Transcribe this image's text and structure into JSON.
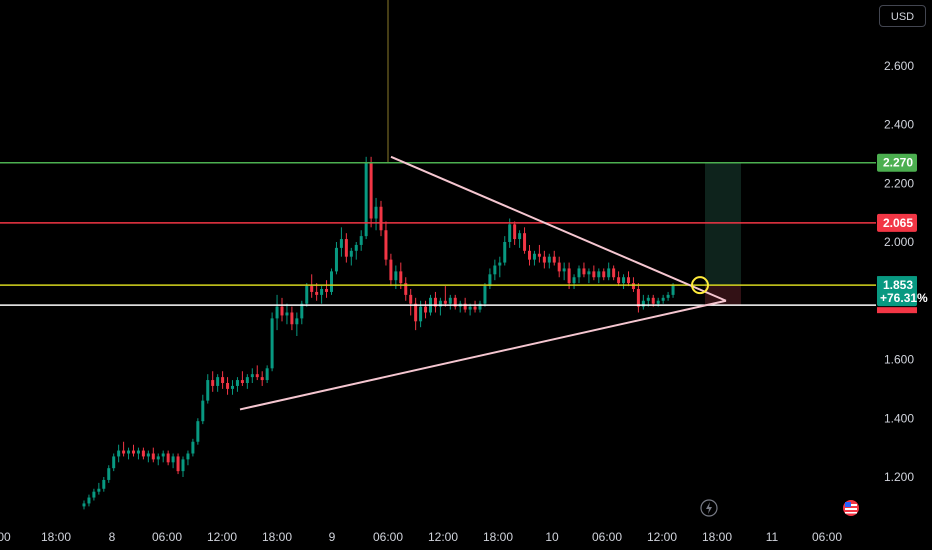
{
  "currency": "USD",
  "chart_data": {
    "type": "candlestick",
    "ylim": [
      1.075,
      2.75
    ],
    "y_ticks": [
      "2.600",
      "2.400",
      "2.200",
      "2.000",
      "1.600",
      "1.400",
      "1.200"
    ],
    "x_ticks": [
      "00",
      "18:00",
      "8",
      "06:00",
      "12:00",
      "18:00",
      "9",
      "06:00",
      "12:00",
      "18:00",
      "10",
      "06:00",
      "12:00",
      "18:00",
      "11",
      "06:00"
    ],
    "price_lines": [
      {
        "name": "target",
        "price": 2.27,
        "label": "2.270",
        "color": "#4caf50"
      },
      {
        "name": "resistance",
        "price": 2.065,
        "label": "2.065",
        "color": "#f23645"
      },
      {
        "name": "current",
        "price": 1.853,
        "label": "1.853",
        "sub": "+76.31%",
        "color": "#d6d61f"
      },
      {
        "name": "entry",
        "price": 1.785,
        "color": "#ffffff"
      }
    ],
    "triangle": {
      "apex_price": 1.8,
      "top_start_price": 2.29,
      "bottom_start_price": 1.43,
      "color": "#f5c6d0"
    },
    "candles": [
      [
        1.1,
        1.12,
        1.09,
        1.11
      ],
      [
        1.11,
        1.14,
        1.1,
        1.13
      ],
      [
        1.13,
        1.16,
        1.12,
        1.15
      ],
      [
        1.15,
        1.18,
        1.14,
        1.16
      ],
      [
        1.16,
        1.2,
        1.15,
        1.19
      ],
      [
        1.19,
        1.24,
        1.18,
        1.23
      ],
      [
        1.23,
        1.28,
        1.22,
        1.27
      ],
      [
        1.27,
        1.31,
        1.25,
        1.29
      ],
      [
        1.29,
        1.32,
        1.27,
        1.28
      ],
      [
        1.28,
        1.3,
        1.26,
        1.29
      ],
      [
        1.29,
        1.31,
        1.27,
        1.28
      ],
      [
        1.28,
        1.3,
        1.26,
        1.29
      ],
      [
        1.29,
        1.3,
        1.26,
        1.27
      ],
      [
        1.27,
        1.29,
        1.25,
        1.28
      ],
      [
        1.28,
        1.3,
        1.25,
        1.26
      ],
      [
        1.26,
        1.28,
        1.24,
        1.27
      ],
      [
        1.27,
        1.29,
        1.25,
        1.28
      ],
      [
        1.28,
        1.29,
        1.24,
        1.25
      ],
      [
        1.25,
        1.28,
        1.23,
        1.27
      ],
      [
        1.27,
        1.28,
        1.21,
        1.22
      ],
      [
        1.22,
        1.27,
        1.2,
        1.26
      ],
      [
        1.26,
        1.29,
        1.24,
        1.28
      ],
      [
        1.28,
        1.33,
        1.27,
        1.32
      ],
      [
        1.32,
        1.4,
        1.31,
        1.39
      ],
      [
        1.39,
        1.48,
        1.38,
        1.46
      ],
      [
        1.46,
        1.55,
        1.45,
        1.53
      ],
      [
        1.53,
        1.56,
        1.49,
        1.51
      ],
      [
        1.51,
        1.55,
        1.49,
        1.54
      ],
      [
        1.54,
        1.56,
        1.5,
        1.52
      ],
      [
        1.52,
        1.54,
        1.48,
        1.5
      ],
      [
        1.5,
        1.53,
        1.48,
        1.51
      ],
      [
        1.51,
        1.54,
        1.49,
        1.53
      ],
      [
        1.53,
        1.56,
        1.51,
        1.52
      ],
      [
        1.52,
        1.55,
        1.5,
        1.54
      ],
      [
        1.54,
        1.57,
        1.52,
        1.55
      ],
      [
        1.55,
        1.58,
        1.53,
        1.54
      ],
      [
        1.54,
        1.56,
        1.51,
        1.53
      ],
      [
        1.53,
        1.58,
        1.52,
        1.57
      ],
      [
        1.57,
        1.76,
        1.56,
        1.74
      ],
      [
        1.74,
        1.82,
        1.7,
        1.78
      ],
      [
        1.78,
        1.81,
        1.73,
        1.75
      ],
      [
        1.75,
        1.79,
        1.72,
        1.76
      ],
      [
        1.76,
        1.78,
        1.7,
        1.72
      ],
      [
        1.72,
        1.76,
        1.68,
        1.74
      ],
      [
        1.74,
        1.8,
        1.72,
        1.79
      ],
      [
        1.79,
        1.86,
        1.78,
        1.85
      ],
      [
        1.85,
        1.89,
        1.81,
        1.83
      ],
      [
        1.83,
        1.86,
        1.8,
        1.82
      ],
      [
        1.82,
        1.85,
        1.79,
        1.84
      ],
      [
        1.84,
        1.87,
        1.81,
        1.83
      ],
      [
        1.83,
        1.91,
        1.82,
        1.9
      ],
      [
        1.9,
        2.0,
        1.89,
        1.98
      ],
      [
        1.98,
        2.05,
        1.95,
        2.01
      ],
      [
        2.01,
        2.03,
        1.93,
        1.95
      ],
      [
        1.95,
        1.98,
        1.92,
        1.97
      ],
      [
        1.97,
        2.0,
        1.94,
        1.99
      ],
      [
        1.99,
        2.04,
        1.97,
        2.02
      ],
      [
        2.02,
        2.29,
        2.01,
        2.27
      ],
      [
        2.27,
        2.29,
        2.05,
        2.08
      ],
      [
        2.08,
        2.15,
        2.04,
        2.12
      ],
      [
        2.12,
        2.14,
        2.02,
        2.04
      ],
      [
        2.04,
        2.07,
        1.92,
        1.94
      ],
      [
        1.94,
        1.96,
        1.85,
        1.87
      ],
      [
        1.87,
        1.92,
        1.84,
        1.9
      ],
      [
        1.9,
        1.93,
        1.84,
        1.86
      ],
      [
        1.86,
        1.88,
        1.8,
        1.82
      ],
      [
        1.82,
        1.84,
        1.75,
        1.79
      ],
      [
        1.79,
        1.81,
        1.7,
        1.73
      ],
      [
        1.73,
        1.8,
        1.71,
        1.78
      ],
      [
        1.78,
        1.8,
        1.74,
        1.76
      ],
      [
        1.76,
        1.82,
        1.75,
        1.81
      ],
      [
        1.81,
        1.83,
        1.76,
        1.78
      ],
      [
        1.78,
        1.81,
        1.75,
        1.8
      ],
      [
        1.8,
        1.85,
        1.78,
        1.79
      ],
      [
        1.79,
        1.82,
        1.77,
        1.81
      ],
      [
        1.81,
        1.82,
        1.77,
        1.78
      ],
      [
        1.78,
        1.8,
        1.76,
        1.79
      ],
      [
        1.79,
        1.81,
        1.76,
        1.77
      ],
      [
        1.77,
        1.79,
        1.75,
        1.78
      ],
      [
        1.78,
        1.8,
        1.76,
        1.77
      ],
      [
        1.77,
        1.8,
        1.76,
        1.79
      ],
      [
        1.79,
        1.86,
        1.78,
        1.85
      ],
      [
        1.85,
        1.91,
        1.84,
        1.89
      ],
      [
        1.89,
        1.94,
        1.87,
        1.92
      ],
      [
        1.92,
        1.95,
        1.88,
        1.93
      ],
      [
        1.93,
        2.02,
        1.92,
        2.0
      ],
      [
        2.0,
        2.08,
        1.98,
        2.06
      ],
      [
        2.06,
        2.07,
        1.99,
        2.01
      ],
      [
        2.01,
        2.04,
        1.98,
        2.03
      ],
      [
        2.03,
        2.05,
        1.96,
        1.97
      ],
      [
        1.97,
        1.99,
        1.92,
        1.94
      ],
      [
        1.94,
        1.97,
        1.92,
        1.96
      ],
      [
        1.96,
        1.99,
        1.93,
        1.95
      ],
      [
        1.95,
        1.97,
        1.91,
        1.93
      ],
      [
        1.93,
        1.96,
        1.91,
        1.95
      ],
      [
        1.95,
        1.97,
        1.92,
        1.93
      ],
      [
        1.93,
        1.95,
        1.88,
        1.9
      ],
      [
        1.9,
        1.93,
        1.87,
        1.91
      ],
      [
        1.91,
        1.93,
        1.84,
        1.86
      ],
      [
        1.86,
        1.89,
        1.84,
        1.88
      ],
      [
        1.88,
        1.92,
        1.86,
        1.91
      ],
      [
        1.91,
        1.93,
        1.88,
        1.89
      ],
      [
        1.89,
        1.91,
        1.86,
        1.9
      ],
      [
        1.9,
        1.92,
        1.87,
        1.88
      ],
      [
        1.88,
        1.91,
        1.86,
        1.9
      ],
      [
        1.9,
        1.91,
        1.87,
        1.88
      ],
      [
        1.88,
        1.93,
        1.87,
        1.91
      ],
      [
        1.91,
        1.92,
        1.87,
        1.88
      ],
      [
        1.88,
        1.9,
        1.85,
        1.86
      ],
      [
        1.86,
        1.89,
        1.84,
        1.88
      ],
      [
        1.88,
        1.9,
        1.85,
        1.86
      ],
      [
        1.86,
        1.88,
        1.83,
        1.84
      ],
      [
        1.84,
        1.86,
        1.76,
        1.78
      ],
      [
        1.78,
        1.82,
        1.77,
        1.8
      ],
      [
        1.8,
        1.82,
        1.78,
        1.81
      ],
      [
        1.81,
        1.82,
        1.78,
        1.79
      ],
      [
        1.79,
        1.81,
        1.78,
        1.8
      ],
      [
        1.8,
        1.82,
        1.79,
        1.81
      ],
      [
        1.81,
        1.83,
        1.8,
        1.82
      ],
      [
        1.82,
        1.86,
        1.81,
        1.853
      ]
    ]
  }
}
